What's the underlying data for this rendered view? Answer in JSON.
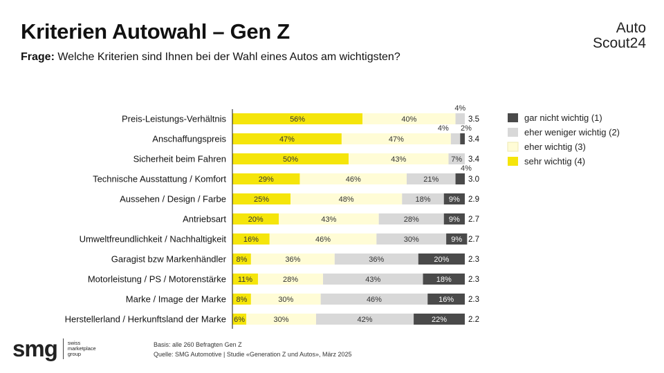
{
  "header": {
    "title": "Kriterien Autowahl – Gen Z",
    "question_label": "Frage:",
    "question_text": " Welche Kriterien sind Ihnen bei der Wahl eines Autos am wichtigsten?"
  },
  "logo": {
    "line1": "Auto",
    "line2": "Scout24"
  },
  "footer": {
    "basis": "Basis: alle 260 Befragten Gen Z",
    "source": "Quelle: SMG Automotive | Studie «Generation Z und Autos», März 2025",
    "brand": "smg",
    "brand_tag": [
      "swiss",
      "marketplace",
      "group"
    ]
  },
  "colors": {
    "sehr": "#f5e50b",
    "eher": "#fffcd6",
    "weniger": "#d8d8d8",
    "gar_nicht": "#4a4a4a"
  },
  "chart_data": {
    "type": "bar",
    "orientation": "horizontal",
    "stacked": true,
    "categories": [
      "Preis-Leistungs-Verhältnis",
      "Anschaffungspreis",
      "Sicherheit beim Fahren",
      "Technische Ausstattung / Komfort",
      "Aussehen / Design / Farbe",
      "Antriebsart",
      "Umweltfreundlichkeit / Nachhaltigkeit",
      "Garagist bzw  Markenhändler",
      "Motorleistung / PS / Motorenstärke",
      "Marke / Image der Marke",
      "Herstellerland / Herkunftsland der Marke"
    ],
    "series": [
      {
        "name": "sehr wichtig (4)",
        "key": "sehr",
        "values": [
          56,
          47,
          50,
          29,
          25,
          20,
          16,
          8,
          11,
          8,
          6
        ]
      },
      {
        "name": "eher wichtig (3)",
        "key": "eher",
        "values": [
          40,
          47,
          43,
          46,
          48,
          43,
          46,
          36,
          28,
          30,
          30
        ]
      },
      {
        "name": "eher weniger wichtig (2)",
        "key": "weniger",
        "values": [
          4,
          4,
          7,
          21,
          18,
          28,
          30,
          36,
          43,
          46,
          42
        ]
      },
      {
        "name": "gar nicht wichtig (1)",
        "key": "gar_nicht",
        "values": [
          0,
          2,
          0,
          4,
          9,
          9,
          9,
          20,
          18,
          16,
          22
        ]
      }
    ],
    "mean_scores": [
      "3.5",
      "3.4",
      "3.4",
      "3.0",
      "2.9",
      "2.7",
      "2.7",
      "2.3",
      "2.3",
      "2.3",
      "2.2"
    ],
    "legend_order": [
      "gar nicht wichtig (1)",
      "eher weniger wichtig (2)",
      "eher wichtig (3)",
      "sehr wichtig (4)"
    ],
    "legend_position": "right",
    "xlim": [
      0,
      100
    ],
    "value_suffix": "%"
  }
}
